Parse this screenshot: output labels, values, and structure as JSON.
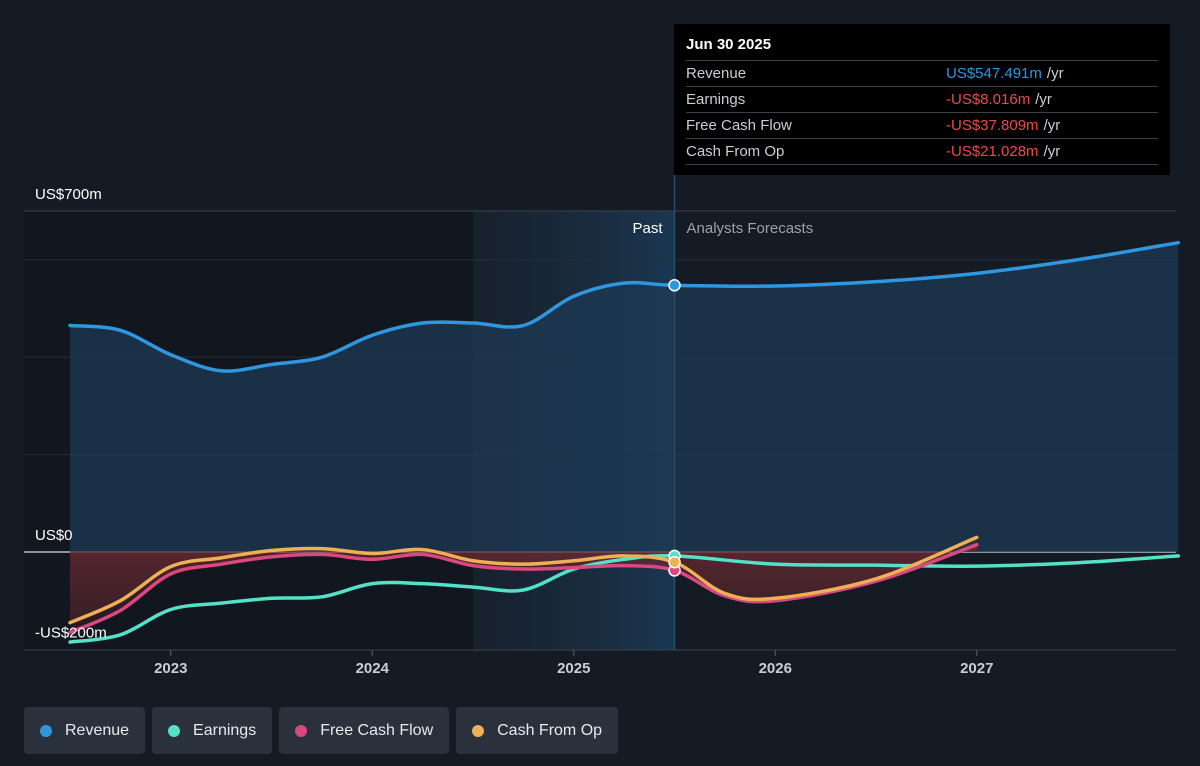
{
  "tooltip": {
    "date": "Jun 30 2025",
    "rows": [
      {
        "label": "Revenue",
        "value": "US$547.491m",
        "unit": "/yr",
        "color": "#2f96e0"
      },
      {
        "label": "Earnings",
        "value": "-US$8.016m",
        "unit": "/yr",
        "color": "#ec4a4a"
      },
      {
        "label": "Free Cash Flow",
        "value": "-US$37.809m",
        "unit": "/yr",
        "color": "#ec4a4a"
      },
      {
        "label": "Cash From Op",
        "value": "-US$21.028m",
        "unit": "/yr",
        "color": "#ec4a4a"
      }
    ]
  },
  "legend": [
    {
      "label": "Revenue",
      "color": "#2f96e0"
    },
    {
      "label": "Earnings",
      "color": "#55e0c8"
    },
    {
      "label": "Free Cash Flow",
      "color": "#d9487e"
    },
    {
      "label": "Cash From Op",
      "color": "#eeb055"
    }
  ],
  "chart_data": {
    "type": "line",
    "y_axis_labels": [
      "US$700m",
      "US$0",
      "-US$200m"
    ],
    "ylim": [
      -200,
      700
    ],
    "x_ticks": [
      {
        "label": "2023",
        "x": 2023.0
      },
      {
        "label": "2024",
        "x": 2024.0
      },
      {
        "label": "2025",
        "x": 2025.0
      },
      {
        "label": "2026",
        "x": 2026.0
      },
      {
        "label": "2027",
        "x": 2027.0
      }
    ],
    "xlim": [
      2022.25,
      2028.0
    ],
    "past_label": "Past",
    "forecast_label": "Analysts Forecasts",
    "divider_x": 2025.5,
    "past_shade_start": 2024.5,
    "grid": true,
    "series": [
      {
        "name": "Revenue",
        "color": "#2f96e0",
        "fill": true,
        "points": [
          [
            2022.5,
            465
          ],
          [
            2022.75,
            455
          ],
          [
            2023.0,
            405
          ],
          [
            2023.25,
            372
          ],
          [
            2023.5,
            385
          ],
          [
            2023.75,
            400
          ],
          [
            2024.0,
            445
          ],
          [
            2024.25,
            470
          ],
          [
            2024.5,
            470
          ],
          [
            2024.75,
            465
          ],
          [
            2025.0,
            525
          ],
          [
            2025.25,
            552
          ],
          [
            2025.5,
            547.5
          ],
          [
            2026.0,
            546
          ],
          [
            2026.5,
            555
          ],
          [
            2027.0,
            572
          ],
          [
            2027.5,
            600
          ],
          [
            2028.0,
            635
          ]
        ]
      },
      {
        "name": "Earnings",
        "color": "#55e0c8",
        "fill": false,
        "points": [
          [
            2022.5,
            -185
          ],
          [
            2022.75,
            -170
          ],
          [
            2023.0,
            -118
          ],
          [
            2023.25,
            -105
          ],
          [
            2023.5,
            -95
          ],
          [
            2023.75,
            -92
          ],
          [
            2024.0,
            -65
          ],
          [
            2024.25,
            -65
          ],
          [
            2024.5,
            -72
          ],
          [
            2024.75,
            -78
          ],
          [
            2025.0,
            -35
          ],
          [
            2025.25,
            -15
          ],
          [
            2025.5,
            -8
          ],
          [
            2026.0,
            -25
          ],
          [
            2026.5,
            -27
          ],
          [
            2027.0,
            -29
          ],
          [
            2027.5,
            -22
          ],
          [
            2028.0,
            -8
          ]
        ]
      },
      {
        "name": "Free Cash Flow",
        "color": "#d9487e",
        "fill": true,
        "points": [
          [
            2022.5,
            -165
          ],
          [
            2022.75,
            -120
          ],
          [
            2023.0,
            -45
          ],
          [
            2023.25,
            -25
          ],
          [
            2023.5,
            -10
          ],
          [
            2023.75,
            -5
          ],
          [
            2024.0,
            -15
          ],
          [
            2024.25,
            -5
          ],
          [
            2024.5,
            -28
          ],
          [
            2024.75,
            -35
          ],
          [
            2025.0,
            -32
          ],
          [
            2025.25,
            -28
          ],
          [
            2025.5,
            -37.8
          ],
          [
            2025.75,
            -90
          ],
          [
            2026.0,
            -100
          ],
          [
            2026.5,
            -60
          ],
          [
            2027.0,
            15
          ]
        ]
      },
      {
        "name": "Cash From Op",
        "color": "#eeb055",
        "fill": true,
        "points": [
          [
            2022.5,
            -145
          ],
          [
            2022.75,
            -100
          ],
          [
            2023.0,
            -30
          ],
          [
            2023.25,
            -12
          ],
          [
            2023.5,
            3
          ],
          [
            2023.75,
            7
          ],
          [
            2024.0,
            -3
          ],
          [
            2024.25,
            5
          ],
          [
            2024.5,
            -18
          ],
          [
            2024.75,
            -25
          ],
          [
            2025.0,
            -18
          ],
          [
            2025.25,
            -8
          ],
          [
            2025.5,
            -21
          ],
          [
            2025.75,
            -85
          ],
          [
            2026.0,
            -95
          ],
          [
            2026.5,
            -55
          ],
          [
            2027.0,
            30
          ]
        ]
      }
    ]
  }
}
